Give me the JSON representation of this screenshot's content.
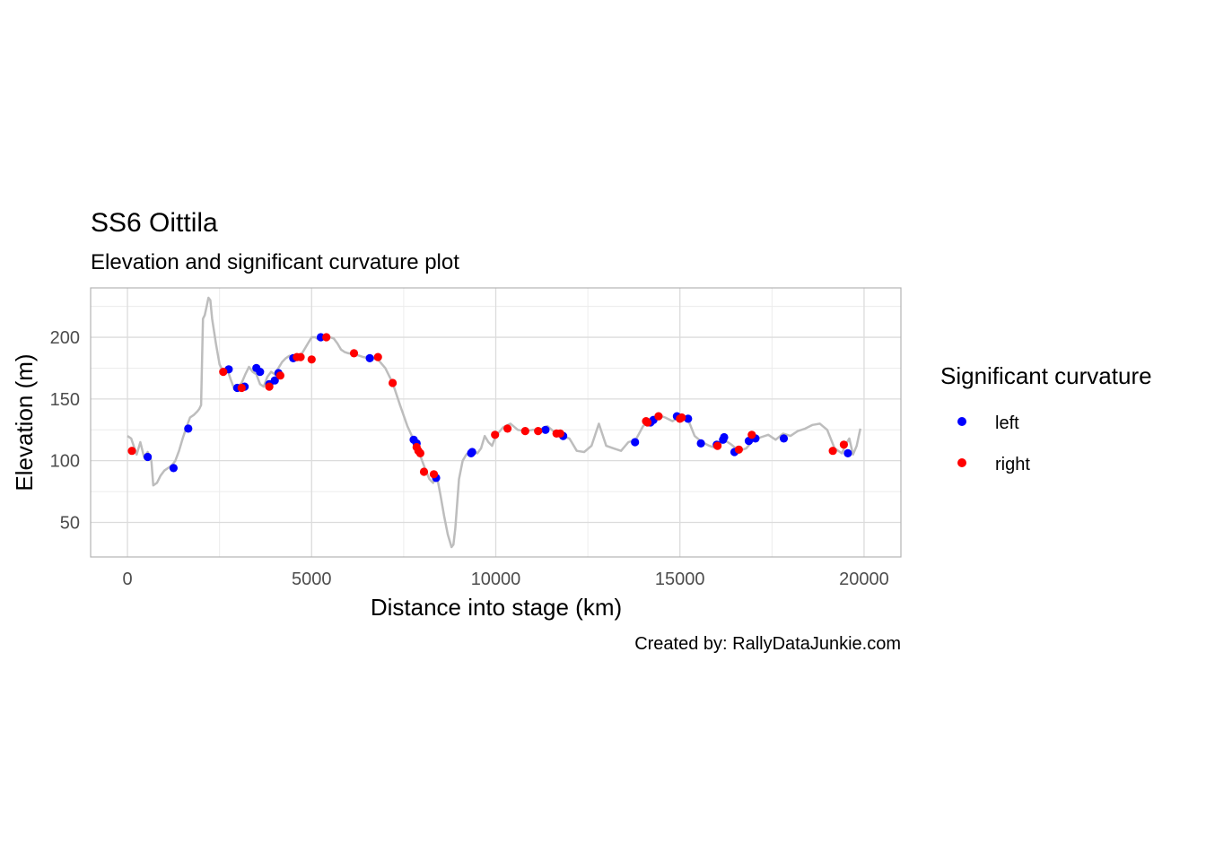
{
  "chart_data": {
    "type": "line+scatter",
    "title": "SS6 Oittila",
    "subtitle": "Elevation and significant curvature plot",
    "xlabel": "Distance into stage (km)",
    "ylabel": "Elevation (m)",
    "caption": "Created by: RallyDataJunkie.com",
    "xlim": [
      -1000,
      21000
    ],
    "ylim": [
      22,
      240
    ],
    "x_ticks": [
      0,
      5000,
      10000,
      15000,
      20000
    ],
    "x_tick_labels": [
      "0",
      "5000",
      "10000",
      "15000",
      "20000"
    ],
    "y_ticks": [
      50,
      100,
      150,
      200
    ],
    "y_tick_labels": [
      "50",
      "100",
      "150",
      "200"
    ],
    "grid": true,
    "legend": {
      "title": "Significant curvature",
      "position": "right",
      "entries": [
        {
          "label": "left",
          "color": "#0000ff"
        },
        {
          "label": "right",
          "color": "#ff0000"
        }
      ]
    },
    "line_color": "#bdbdbd",
    "elevation_profile": {
      "x": [
        0,
        100,
        250,
        350,
        450,
        550,
        600,
        650,
        700,
        800,
        900,
        1000,
        1100,
        1200,
        1300,
        1400,
        1500,
        1600,
        1700,
        1800,
        1900,
        1950,
        2000,
        2050,
        2100,
        2150,
        2200,
        2250,
        2300,
        2400,
        2500,
        2600,
        2700,
        2800,
        2900,
        3000,
        3100,
        3200,
        3300,
        3400,
        3500,
        3600,
        3700,
        3800,
        3900,
        4000,
        4100,
        4200,
        4300,
        4400,
        4500,
        4600,
        4700,
        4800,
        4900,
        5000,
        5100,
        5200,
        5300,
        5400,
        5500,
        5600,
        5700,
        5800,
        5900,
        6000,
        6200,
        6400,
        6600,
        6800,
        7000,
        7200,
        7400,
        7600,
        7800,
        7900,
        8000,
        8100,
        8200,
        8300,
        8400,
        8500,
        8600,
        8700,
        8800,
        8850,
        8900,
        9000,
        9100,
        9200,
        9300,
        9400,
        9500,
        9600,
        9700,
        9800,
        9900,
        10000,
        10200,
        10400,
        10600,
        10800,
        11000,
        11200,
        11400,
        11600,
        11700,
        11800,
        12000,
        12200,
        12400,
        12600,
        12800,
        13000,
        13200,
        13400,
        13600,
        13800,
        14000,
        14200,
        14400,
        14600,
        14800,
        15000,
        15200,
        15400,
        15600,
        15800,
        16000,
        16200,
        16400,
        16600,
        16800,
        17000,
        17200,
        17400,
        17600,
        17800,
        18000,
        18200,
        18400,
        18600,
        18800,
        19000,
        19200,
        19400,
        19500,
        19600,
        19700,
        19800,
        19900
      ],
      "y": [
        120,
        118,
        105,
        115,
        103,
        107,
        103,
        100,
        80,
        82,
        88,
        92,
        94,
        96,
        100,
        108,
        118,
        127,
        135,
        137,
        140,
        142,
        145,
        215,
        218,
        225,
        232,
        230,
        215,
        195,
        178,
        172,
        175,
        166,
        158,
        160,
        163,
        170,
        176,
        172,
        170,
        162,
        160,
        168,
        172,
        170,
        175,
        180,
        183,
        185,
        183,
        182,
        185,
        190,
        195,
        200,
        200,
        198,
        200,
        200,
        200,
        199,
        195,
        190,
        188,
        187,
        186,
        184,
        183,
        182,
        175,
        163,
        145,
        128,
        115,
        108,
        100,
        92,
        85,
        82,
        88,
        72,
        55,
        40,
        30,
        32,
        45,
        85,
        100,
        105,
        107,
        108,
        106,
        110,
        120,
        115,
        112,
        120,
        127,
        130,
        125,
        124,
        125,
        125,
        128,
        123,
        121,
        120,
        118,
        108,
        107,
        112,
        130,
        112,
        110,
        108,
        115,
        117,
        128,
        133,
        137,
        135,
        132,
        136,
        135,
        120,
        115,
        112,
        110,
        117,
        113,
        108,
        110,
        117,
        119,
        121,
        117,
        122,
        120,
        124,
        126,
        129,
        130,
        125,
        110,
        106,
        113,
        118,
        105,
        112,
        126
      ]
    },
    "series": [
      {
        "name": "left",
        "color": "#0000ff",
        "x": [
          550,
          1250,
          1650,
          2750,
          2980,
          3180,
          3500,
          3600,
          3850,
          4000,
          4100,
          4500,
          5250,
          6580,
          7770,
          7850,
          8380,
          9330,
          9360,
          11350,
          11830,
          13780,
          14200,
          14280,
          14920,
          15220,
          15570,
          16000,
          16170,
          16200,
          16480,
          16870,
          17050,
          17820,
          19560
        ],
        "y": [
          103,
          94,
          126,
          174,
          159,
          160,
          175,
          172,
          162,
          165,
          171,
          183,
          200,
          183,
          117,
          114,
          86,
          106,
          107,
          125,
          120,
          115,
          131,
          133,
          136,
          134,
          114,
          113,
          117,
          119,
          107,
          116,
          118,
          118,
          106
        ]
      },
      {
        "name": "right",
        "color": "#ff0000",
        "x": [
          120,
          2600,
          3100,
          3850,
          4150,
          4600,
          4700,
          5000,
          5400,
          6150,
          6800,
          7200,
          7850,
          7900,
          7950,
          8050,
          8320,
          9980,
          10320,
          10800,
          11150,
          11650,
          11750,
          14080,
          14120,
          14420,
          15000,
          15050,
          16020,
          16600,
          16950,
          19150,
          19450
        ],
        "y": [
          108,
          172,
          159,
          160,
          169,
          184,
          184,
          182,
          200,
          187,
          184,
          163,
          111,
          108,
          106,
          91,
          89,
          121,
          126,
          124,
          124,
          122,
          122,
          132,
          131,
          136,
          134,
          135,
          112,
          109,
          121,
          108,
          113
        ]
      }
    ]
  }
}
